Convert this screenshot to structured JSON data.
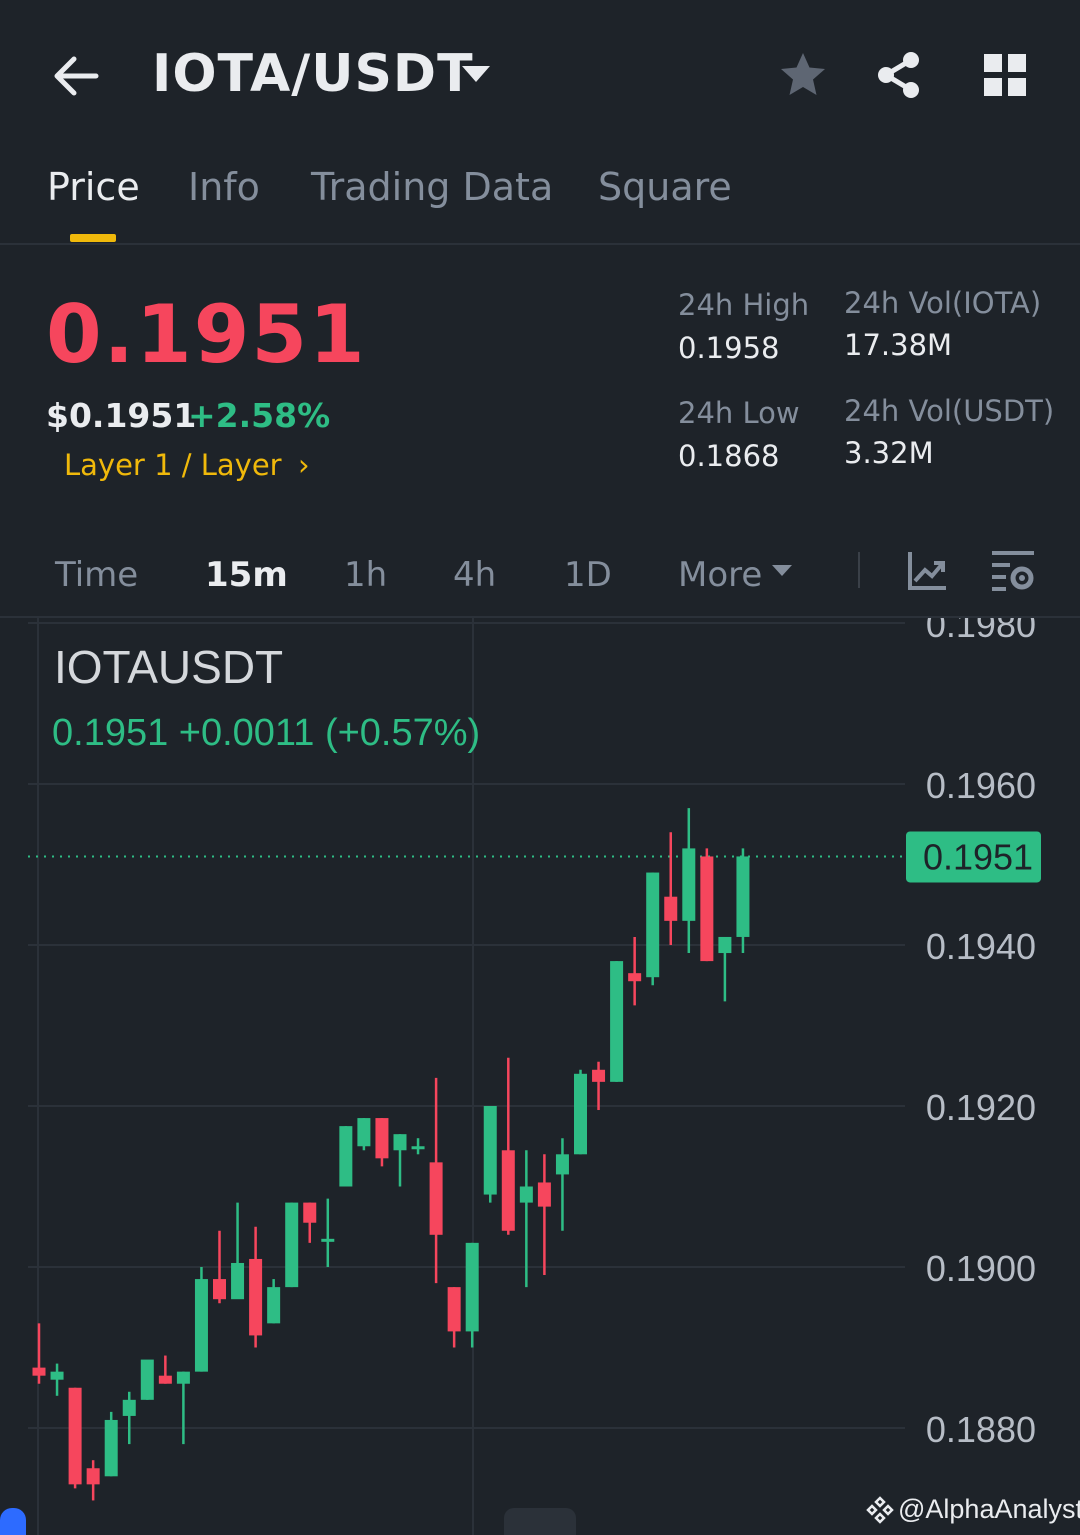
{
  "header": {
    "title": "IOTA/USDT",
    "icons": [
      "back-arrow-icon",
      "dropdown-caret-icon",
      "star-icon",
      "share-icon",
      "grid-icon"
    ]
  },
  "tabs": [
    {
      "label": "Price",
      "active": true
    },
    {
      "label": "Info",
      "active": false
    },
    {
      "label": "Trading Data",
      "active": false
    },
    {
      "label": "Square",
      "active": false
    }
  ],
  "price": {
    "last": "0.1951",
    "usd": "$0.1951",
    "change_pct": "+2.58%",
    "tag": "Layer 1 / Layer",
    "tag_chevron": "›"
  },
  "stats": {
    "high_label": "24h High",
    "high": "0.1958",
    "low_label": "24h Low",
    "low": "0.1868",
    "vol_base_label": "24h Vol(IOTA)",
    "vol_base": "17.38M",
    "vol_quote_label": "24h Vol(USDT)",
    "vol_quote": "3.32M"
  },
  "intervals": {
    "items": [
      "Time",
      "15m",
      "1h",
      "4h",
      "1D"
    ],
    "active": "15m",
    "more_label": "More"
  },
  "chart": {
    "symbol": "IOTAUSDT",
    "summary": "0.1951  +0.0011 (+0.57%)",
    "price_label": "0.1951",
    "watermark": "@AlphaAnalyst"
  },
  "colors": {
    "up": "#2ebd85",
    "down": "#f6465d",
    "accent": "#f0b90b",
    "background": "#1e2329"
  },
  "chart_data": {
    "type": "candlestick",
    "y_ticks": [
      "0.1980",
      "0.1960",
      "0.1940",
      "0.1920",
      "0.1900",
      "0.1880"
    ],
    "ylim": [
      0.1866,
      0.1981
    ],
    "last_price": 0.1951,
    "candles": [
      {
        "o": 0.18875,
        "h": 0.1893,
        "l": 0.18855,
        "c": 0.18865
      },
      {
        "o": 0.1886,
        "h": 0.1888,
        "l": 0.1884,
        "c": 0.1887
      },
      {
        "o": 0.1885,
        "h": 0.1885,
        "l": 0.18725,
        "c": 0.1873
      },
      {
        "o": 0.1875,
        "h": 0.1876,
        "l": 0.1871,
        "c": 0.1873
      },
      {
        "o": 0.1874,
        "h": 0.1882,
        "l": 0.1874,
        "c": 0.1881
      },
      {
        "o": 0.18815,
        "h": 0.18845,
        "l": 0.1878,
        "c": 0.18835
      },
      {
        "o": 0.18835,
        "h": 0.1888,
        "l": 0.18835,
        "c": 0.18885
      },
      {
        "o": 0.18865,
        "h": 0.1889,
        "l": 0.18855,
        "c": 0.18855
      },
      {
        "o": 0.18855,
        "h": 0.1887,
        "l": 0.1878,
        "c": 0.1887
      },
      {
        "o": 0.1887,
        "h": 0.19,
        "l": 0.1887,
        "c": 0.18985
      },
      {
        "o": 0.18985,
        "h": 0.19045,
        "l": 0.18955,
        "c": 0.1896
      },
      {
        "o": 0.1896,
        "h": 0.1908,
        "l": 0.1897,
        "c": 0.19005
      },
      {
        "o": 0.1901,
        "h": 0.1905,
        "l": 0.189,
        "c": 0.18915
      },
      {
        "o": 0.1893,
        "h": 0.18985,
        "l": 0.1893,
        "c": 0.18975
      },
      {
        "o": 0.18975,
        "h": 0.1908,
        "l": 0.18975,
        "c": 0.1908
      },
      {
        "o": 0.1908,
        "h": 0.1908,
        "l": 0.1903,
        "c": 0.19055
      },
      {
        "o": 0.19035,
        "h": 0.19085,
        "l": 0.19,
        "c": 0.19035
      },
      {
        "o": 0.191,
        "h": 0.19175,
        "l": 0.191,
        "c": 0.19175
      },
      {
        "o": 0.1915,
        "h": 0.19185,
        "l": 0.19145,
        "c": 0.19185
      },
      {
        "o": 0.19185,
        "h": 0.19185,
        "l": 0.19125,
        "c": 0.19135
      },
      {
        "o": 0.19145,
        "h": 0.19165,
        "l": 0.191,
        "c": 0.19165
      },
      {
        "o": 0.1915,
        "h": 0.1916,
        "l": 0.1914,
        "c": 0.1915
      },
      {
        "o": 0.1913,
        "h": 0.19235,
        "l": 0.1898,
        "c": 0.1904
      },
      {
        "o": 0.18975,
        "h": 0.18975,
        "l": 0.189,
        "c": 0.1892
      },
      {
        "o": 0.1892,
        "h": 0.1903,
        "l": 0.189,
        "c": 0.1903
      },
      {
        "o": 0.1909,
        "h": 0.192,
        "l": 0.1908,
        "c": 0.192
      },
      {
        "o": 0.19145,
        "h": 0.1926,
        "l": 0.1904,
        "c": 0.19045
      },
      {
        "o": 0.1908,
        "h": 0.19145,
        "l": 0.18975,
        "c": 0.191
      },
      {
        "o": 0.19105,
        "h": 0.1914,
        "l": 0.1899,
        "c": 0.19075
      },
      {
        "o": 0.19115,
        "h": 0.1916,
        "l": 0.19045,
        "c": 0.1914
      },
      {
        "o": 0.1914,
        "h": 0.19245,
        "l": 0.1914,
        "c": 0.1924
      },
      {
        "o": 0.19245,
        "h": 0.19255,
        "l": 0.19195,
        "c": 0.1923
      },
      {
        "o": 0.1923,
        "h": 0.1938,
        "l": 0.1923,
        "c": 0.1938
      },
      {
        "o": 0.19365,
        "h": 0.1941,
        "l": 0.19325,
        "c": 0.19355
      },
      {
        "o": 0.1936,
        "h": 0.1949,
        "l": 0.1935,
        "c": 0.1949
      },
      {
        "o": 0.1946,
        "h": 0.1954,
        "l": 0.194,
        "c": 0.1943
      },
      {
        "o": 0.1943,
        "h": 0.1957,
        "l": 0.1939,
        "c": 0.1952
      },
      {
        "o": 0.1951,
        "h": 0.1952,
        "l": 0.1938,
        "c": 0.1938
      },
      {
        "o": 0.1939,
        "h": 0.1941,
        "l": 0.1933,
        "c": 0.1941
      },
      {
        "o": 0.1941,
        "h": 0.1952,
        "l": 0.1939,
        "c": 0.1951
      }
    ]
  }
}
